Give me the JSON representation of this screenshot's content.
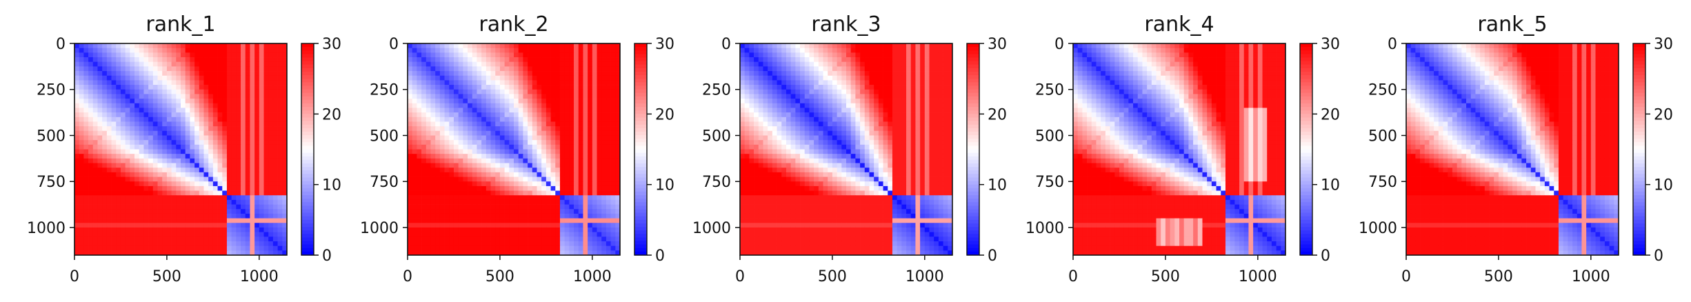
{
  "chart_data": [
    {
      "type": "heatmap",
      "title": "rank_1",
      "x_ticks": [
        0,
        500,
        1000
      ],
      "y_ticks": [
        0,
        250,
        500,
        750,
        1000
      ],
      "x_range": [
        0,
        1150
      ],
      "y_range": [
        0,
        1150
      ],
      "colorbar_ticks": [
        0,
        10,
        20,
        30
      ],
      "colorbar_range": [
        0,
        30
      ],
      "colormap": [
        "#0000ff",
        "#ffffff",
        "#ff0000"
      ],
      "block_split": 820,
      "blue_block_end": 1150
    },
    {
      "type": "heatmap",
      "title": "rank_2",
      "x_ticks": [
        0,
        500,
        1000
      ],
      "y_ticks": [
        0,
        250,
        500,
        750,
        1000
      ],
      "x_range": [
        0,
        1150
      ],
      "y_range": [
        0,
        1150
      ],
      "colorbar_ticks": [
        0,
        10,
        20,
        30
      ],
      "colorbar_range": [
        0,
        30
      ],
      "colormap": [
        "#0000ff",
        "#ffffff",
        "#ff0000"
      ],
      "block_split": 820,
      "blue_block_end": 1150
    },
    {
      "type": "heatmap",
      "title": "rank_3",
      "x_ticks": [
        0,
        500,
        1000
      ],
      "y_ticks": [
        0,
        250,
        500,
        750,
        1000
      ],
      "x_range": [
        0,
        1150
      ],
      "y_range": [
        0,
        1150
      ],
      "colorbar_ticks": [
        0,
        10,
        20,
        30
      ],
      "colorbar_range": [
        0,
        30
      ],
      "colormap": [
        "#0000ff",
        "#ffffff",
        "#ff0000"
      ],
      "block_split": 820,
      "blue_block_end": 1150
    },
    {
      "type": "heatmap",
      "title": "rank_4",
      "x_ticks": [
        0,
        500,
        1000
      ],
      "y_ticks": [
        0,
        250,
        500,
        750,
        1000
      ],
      "x_range": [
        0,
        1150
      ],
      "y_range": [
        0,
        1150
      ],
      "colorbar_ticks": [
        0,
        10,
        20,
        30
      ],
      "colorbar_range": [
        0,
        30
      ],
      "colormap": [
        "#0000ff",
        "#ffffff",
        "#ff0000"
      ],
      "block_split": 820,
      "blue_block_end": 1150
    },
    {
      "type": "heatmap",
      "title": "rank_5",
      "x_ticks": [
        0,
        500,
        1000
      ],
      "y_ticks": [
        0,
        250,
        500,
        750,
        1000
      ],
      "x_range": [
        0,
        1150
      ],
      "y_range": [
        0,
        1150
      ],
      "colorbar_ticks": [
        0,
        10,
        20,
        30
      ],
      "colorbar_range": [
        0,
        30
      ],
      "colormap": [
        "#0000ff",
        "#ffffff",
        "#ff0000"
      ],
      "block_split": 820,
      "blue_block_end": 1150
    }
  ]
}
